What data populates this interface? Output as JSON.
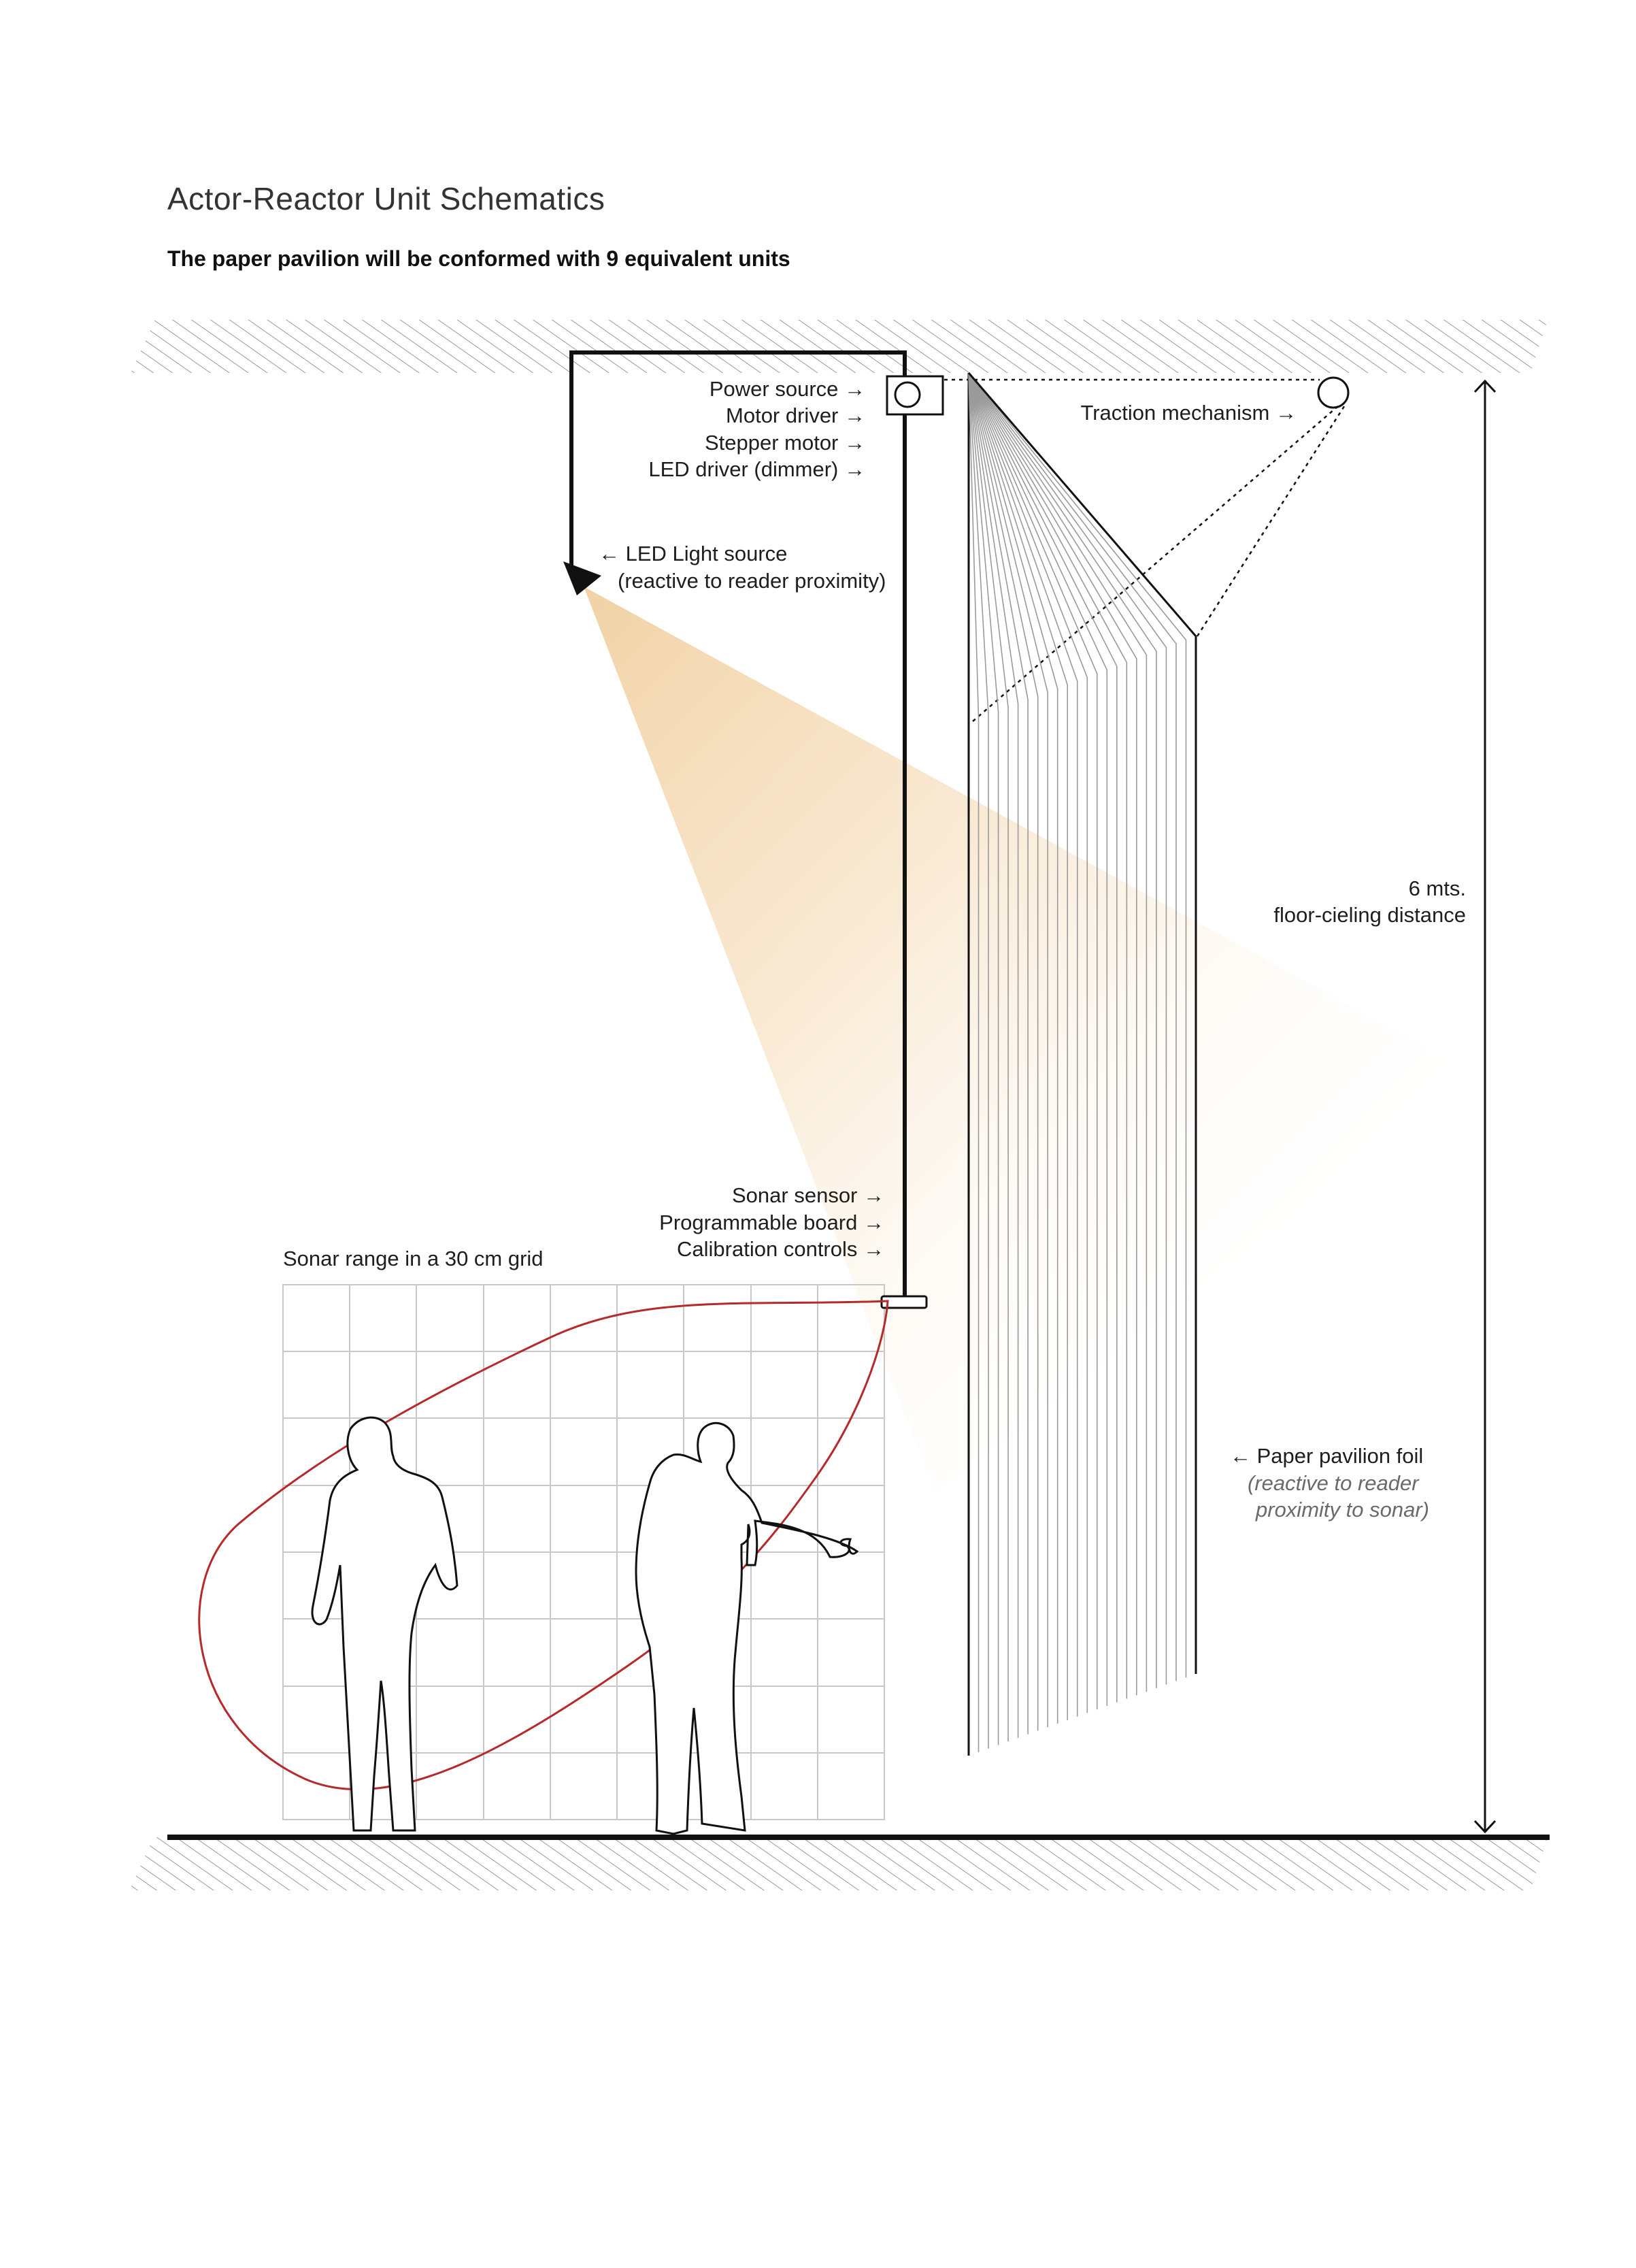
{
  "header": {
    "title": "Actor-Reactor Unit Schematics",
    "subtitle": "The paper pavilion will be conformed with 9 equivalent units"
  },
  "labels": {
    "power_source": "Power source →",
    "motor_driver": "Motor driver →",
    "stepper_motor": "Stepper motor →",
    "led_driver": "LED driver (dimmer) →",
    "traction": "Traction mechanism →",
    "led_light_line1": "←  LED Light source",
    "led_light_line2": "(reactive to reader proximity)",
    "sonar_sensor": "Sonar sensor →",
    "programmable_board": "Programmable board →",
    "calibration": "Calibration controls →",
    "sonar_range": "Sonar range in a 30 cm grid",
    "distance_line1": "6 mts.",
    "distance_line2": "floor-cieling distance",
    "foil_line1": "← Paper pavilion foil",
    "foil_line2": "(reactive to reader",
    "foil_line3": "proximity to sonar)"
  },
  "colors": {
    "sonar_range": "#b52a2a",
    "light_cone": "#f2d4a8",
    "hatch": "#9a9a9a",
    "grid": "#c8c8c8"
  }
}
